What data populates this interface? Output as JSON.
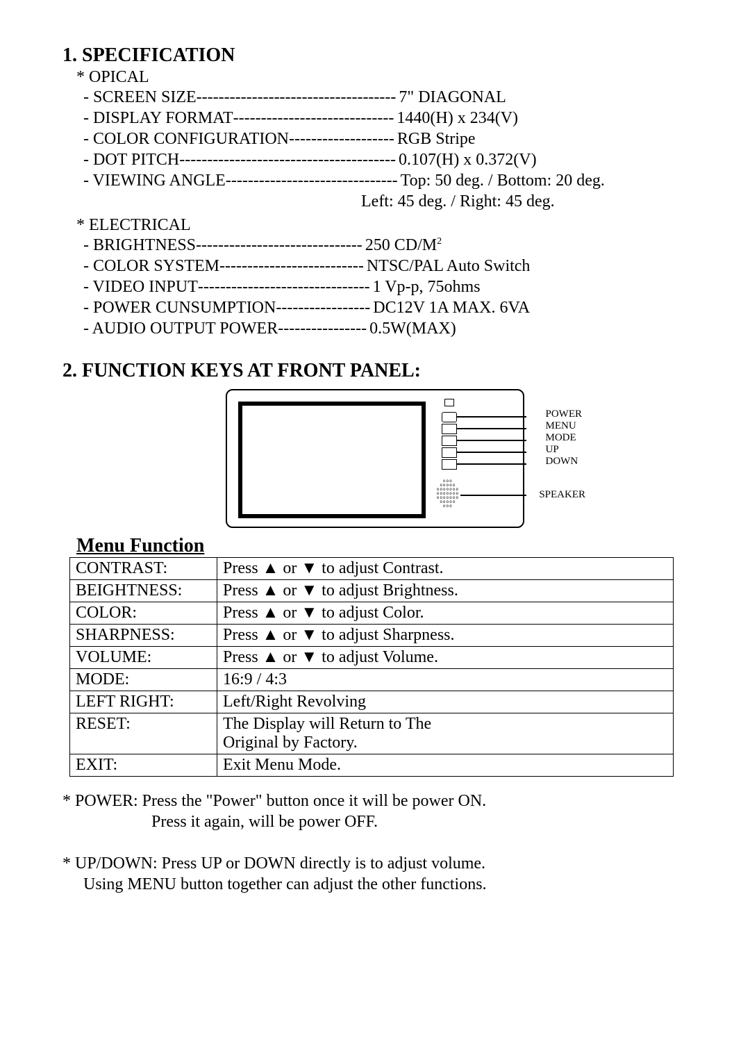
{
  "section1": {
    "title": "1. SPECIFICATION",
    "optical": {
      "heading": "* OPICAL",
      "items": [
        {
          "name": "- SCREEN SIZE",
          "dashes": " ------------------------------------ ",
          "val": "7\" DIAGONAL"
        },
        {
          "name": "- DISPLAY FORMAT",
          "dashes": " ----------------------------- ",
          "val": "1440(H) x 234(V)"
        },
        {
          "name": "- COLOR CONFIGURATION",
          "dashes": " ------------------- ",
          "val": "RGB Stripe"
        },
        {
          "name": "- DOT PITCH",
          "dashes": " --------------------------------------- ",
          "val": "0.107(H) x 0.372(V)"
        },
        {
          "name": "- VIEWING ANGLE",
          "dashes": " ------------------------------- ",
          "val": "Top: 50 deg. / Bottom: 20 deg."
        }
      ],
      "viewing2": "Left: 45 deg. / Right: 45 deg."
    },
    "electrical": {
      "heading": "* ELECTRICAL",
      "items": [
        {
          "name": "- BRIGHTNESS",
          "dashes": "------------------------------",
          "val": "250 CD/M",
          "sup": "2"
        },
        {
          "name": "- COLOR SYSTEM",
          "dashes": " -------------------------- ",
          "val": "NTSC/PAL Auto Switch"
        },
        {
          "name": "- VIDEO INPUT",
          "dashes": " ------------------------------- ",
          "val": "1 Vp-p, 75ohms"
        },
        {
          "name": "- POWER CUNSUMPTION",
          "dashes": " ----------------- ",
          "val": "DC12V  1A MAX. 6VA"
        },
        {
          "name": "- AUDIO OUTPUT POWER",
          "dashes": "---------------- ",
          "val": "0.5W(MAX)"
        }
      ]
    }
  },
  "section2": {
    "title": "2. FUNCTION KEYS AT FRONT PANEL:",
    "panel_labels": [
      "POWER",
      "MENU",
      "MODE",
      "UP",
      "DOWN"
    ],
    "speaker_label": "SPEAKER"
  },
  "menu": {
    "title": "Menu Function",
    "rows": [
      {
        "k": "CONTRAST:",
        "v": "Press ▲ or ▼ to adjust Contrast."
      },
      {
        "k": "BEIGHTNESS:",
        "v": "Press ▲ or ▼ to adjust Brightness."
      },
      {
        "k": "COLOR:",
        "v": "Press ▲ or ▼ to adjust Color."
      },
      {
        "k": "SHARPNESS:",
        "v": "Press ▲ or ▼ to adjust Sharpness."
      },
      {
        "k": "VOLUME:",
        "v": "Press ▲ or ▼ to adjust Volume."
      },
      {
        "k": "MODE:",
        "v": "16:9 / 4:3"
      },
      {
        "k": "LEFT RIGHT:",
        "v": "Left/Right Revolving"
      },
      {
        "k": "RESET:",
        "v": "The Display will Return to The\nOriginal by Factory."
      },
      {
        "k": "EXIT:",
        "v": "Exit Menu Mode."
      }
    ]
  },
  "notes": {
    "power1": "* POWER: Press the \"Power\" button once it will be power ON.",
    "power2": "Press it again, will be power OFF.",
    "updown1": "* UP/DOWN: Press UP or DOWN directly is to adjust volume.",
    "updown2": "Using MENU button together can adjust the other functions."
  }
}
